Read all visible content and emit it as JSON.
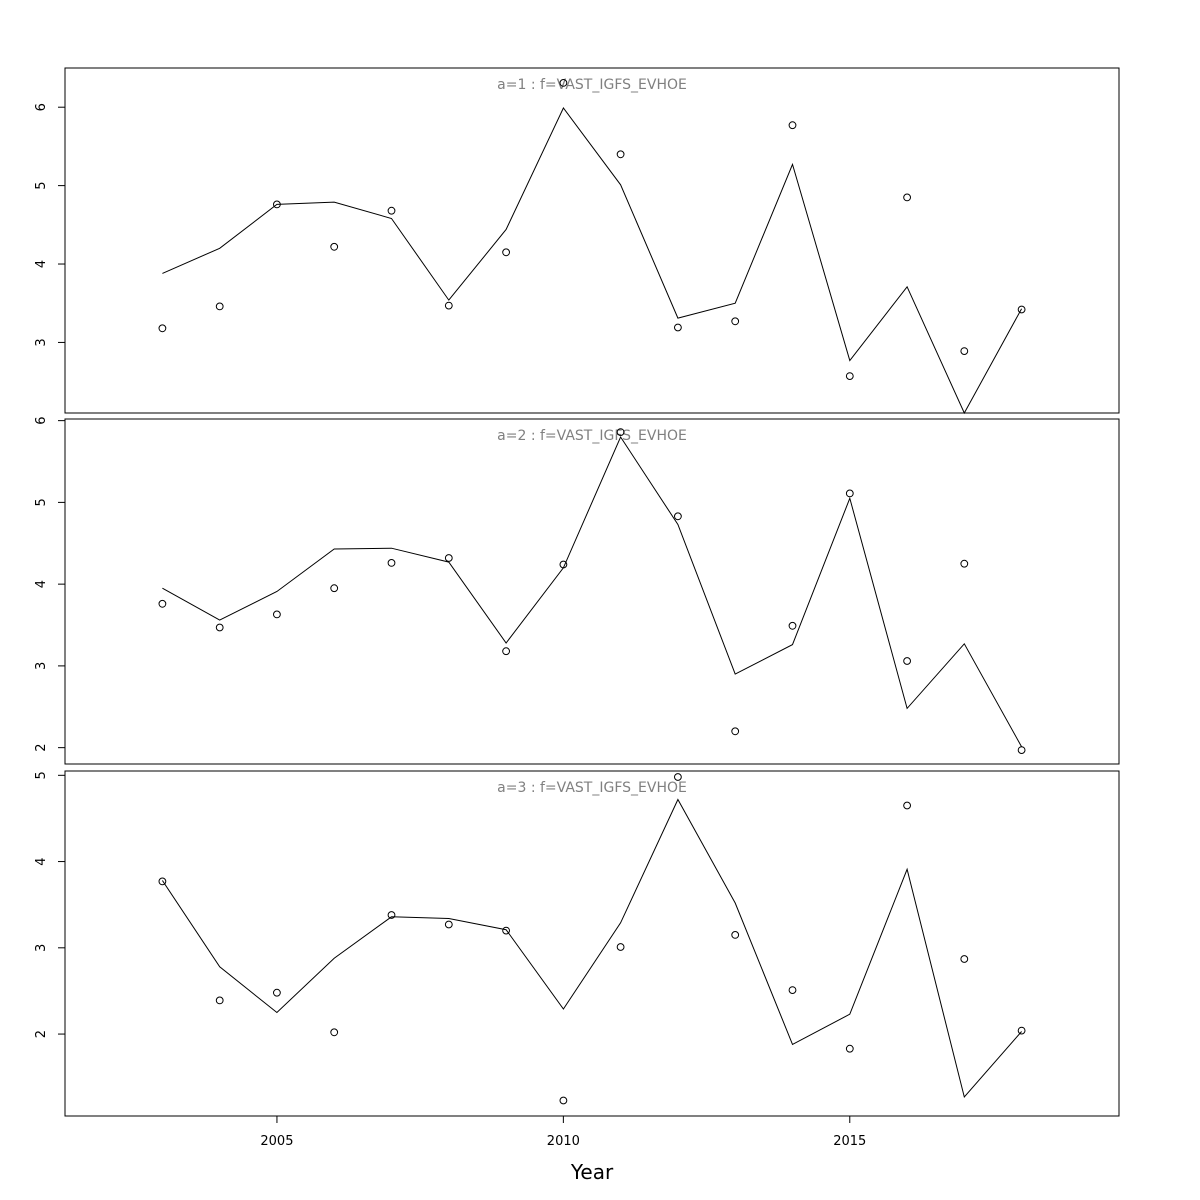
{
  "chart_data": [
    {
      "type": "line",
      "title": "a=1 : f=VAST_IGFS_EVHOE",
      "x": [
        2003,
        2004,
        2005,
        2006,
        2007,
        2008,
        2009,
        2010,
        2011,
        2012,
        2013,
        2014,
        2015,
        2016,
        2017,
        2018
      ],
      "series": [
        {
          "values": [
            3.88,
            4.2,
            4.76,
            4.79,
            4.58,
            3.54,
            4.44,
            5.99,
            5.01,
            3.31,
            3.5,
            5.27,
            2.77,
            3.71,
            2.1,
            3.43
          ],
          "style": "line"
        },
        {
          "values": [
            3.18,
            3.46,
            4.76,
            4.22,
            4.68,
            3.47,
            4.15,
            6.31,
            5.4,
            3.19,
            3.27,
            5.77,
            2.57,
            4.85,
            2.89,
            3.42
          ],
          "style": "points"
        }
      ],
      "yticks": [
        3,
        4,
        5,
        6
      ],
      "ylim": [
        2.1,
        6.5
      ],
      "xlim": [
        2001.3,
        2019.7
      ]
    },
    {
      "type": "line",
      "title": "a=2 : f=VAST_IGFS_EVHOE",
      "x": [
        2003,
        2004,
        2005,
        2006,
        2007,
        2008,
        2009,
        2010,
        2011,
        2012,
        2013,
        2014,
        2015,
        2016,
        2017,
        2018
      ],
      "series": [
        {
          "values": [
            3.95,
            3.56,
            3.91,
            4.43,
            4.44,
            4.27,
            3.28,
            4.2,
            5.8,
            4.73,
            2.9,
            3.26,
            5.05,
            2.48,
            3.27,
            2.01
          ],
          "style": "line"
        },
        {
          "values": [
            3.76,
            3.47,
            3.63,
            3.95,
            4.26,
            4.32,
            3.18,
            4.24,
            5.86,
            4.83,
            2.2,
            3.49,
            5.11,
            3.06,
            4.25,
            1.97
          ],
          "style": "points"
        }
      ],
      "yticks": [
        2,
        3,
        4,
        5,
        6
      ],
      "ylim": [
        1.8,
        6.02
      ],
      "xlim": [
        2001.3,
        2019.7
      ]
    },
    {
      "type": "line",
      "title": "a=3 : f=VAST_IGFS_EVHOE",
      "x": [
        2003,
        2004,
        2005,
        2006,
        2007,
        2008,
        2009,
        2010,
        2011,
        2012,
        2013,
        2014,
        2015,
        2016,
        2017,
        2018
      ],
      "series": [
        {
          "values": [
            3.78,
            2.78,
            2.25,
            2.88,
            3.36,
            3.34,
            3.21,
            2.29,
            3.29,
            4.72,
            3.52,
            1.88,
            2.23,
            3.91,
            1.27,
            2.03
          ],
          "style": "line"
        },
        {
          "values": [
            3.77,
            2.39,
            2.48,
            2.02,
            3.38,
            3.27,
            3.2,
            1.23,
            3.01,
            4.98,
            3.15,
            2.51,
            1.83,
            4.65,
            2.87,
            2.04
          ],
          "style": "points"
        }
      ],
      "yticks": [
        2,
        3,
        4,
        5
      ],
      "ylim": [
        1.05,
        5.05
      ],
      "xlim": [
        2001.3,
        2019.7
      ]
    }
  ],
  "x_axis": {
    "label": "Year",
    "ticks": [
      2005,
      2010,
      2015
    ],
    "tick_labels": [
      "2005",
      "2010",
      "2015"
    ]
  }
}
